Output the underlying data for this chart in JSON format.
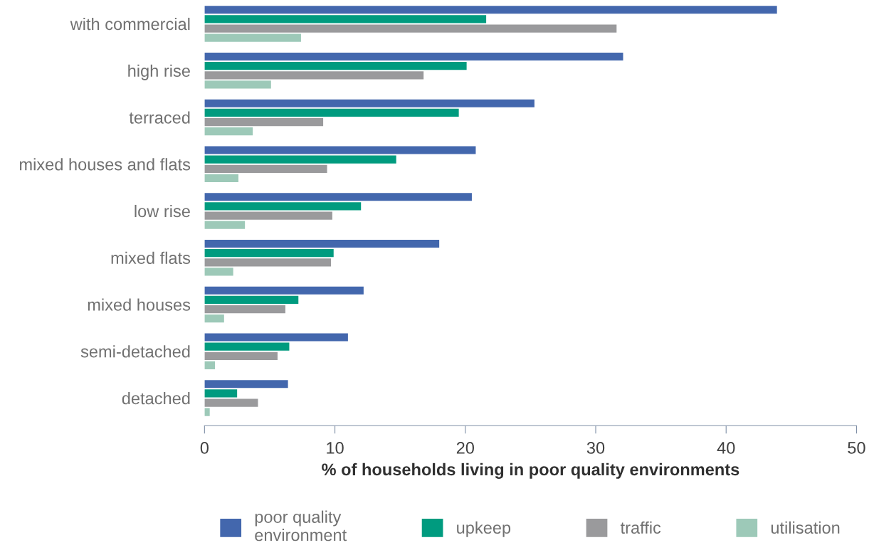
{
  "chart_data": {
    "type": "bar",
    "orientation": "horizontal",
    "categories": [
      "with commercial",
      "high rise",
      "terraced",
      "mixed houses and flats",
      "low rise",
      "mixed flats",
      "mixed houses",
      "semi-detached",
      "detached"
    ],
    "series": [
      {
        "name": "poor quality\nenvironment",
        "color": "#4367ad",
        "values": [
          43.9,
          32.1,
          25.3,
          20.8,
          20.5,
          18.0,
          12.2,
          11.0,
          6.4
        ]
      },
      {
        "name": "upkeep",
        "color": "#009b7f",
        "values": [
          21.6,
          20.1,
          19.5,
          14.7,
          12.0,
          9.9,
          7.2,
          6.5,
          2.5
        ]
      },
      {
        "name": "traffic",
        "color": "#9a9a9c",
        "values": [
          31.6,
          16.8,
          9.1,
          9.4,
          9.8,
          9.7,
          6.2,
          5.6,
          4.1
        ]
      },
      {
        "name": "utilisation",
        "color": "#9dc9b8",
        "values": [
          7.4,
          5.1,
          3.7,
          2.6,
          3.1,
          2.2,
          1.5,
          0.8,
          0.4
        ]
      }
    ],
    "xlim": [
      0,
      50
    ],
    "xticks": [
      0,
      10,
      20,
      30,
      40,
      50
    ],
    "xlabel": "% of households living in poor quality environments",
    "grid": false,
    "legend": "bottom"
  }
}
